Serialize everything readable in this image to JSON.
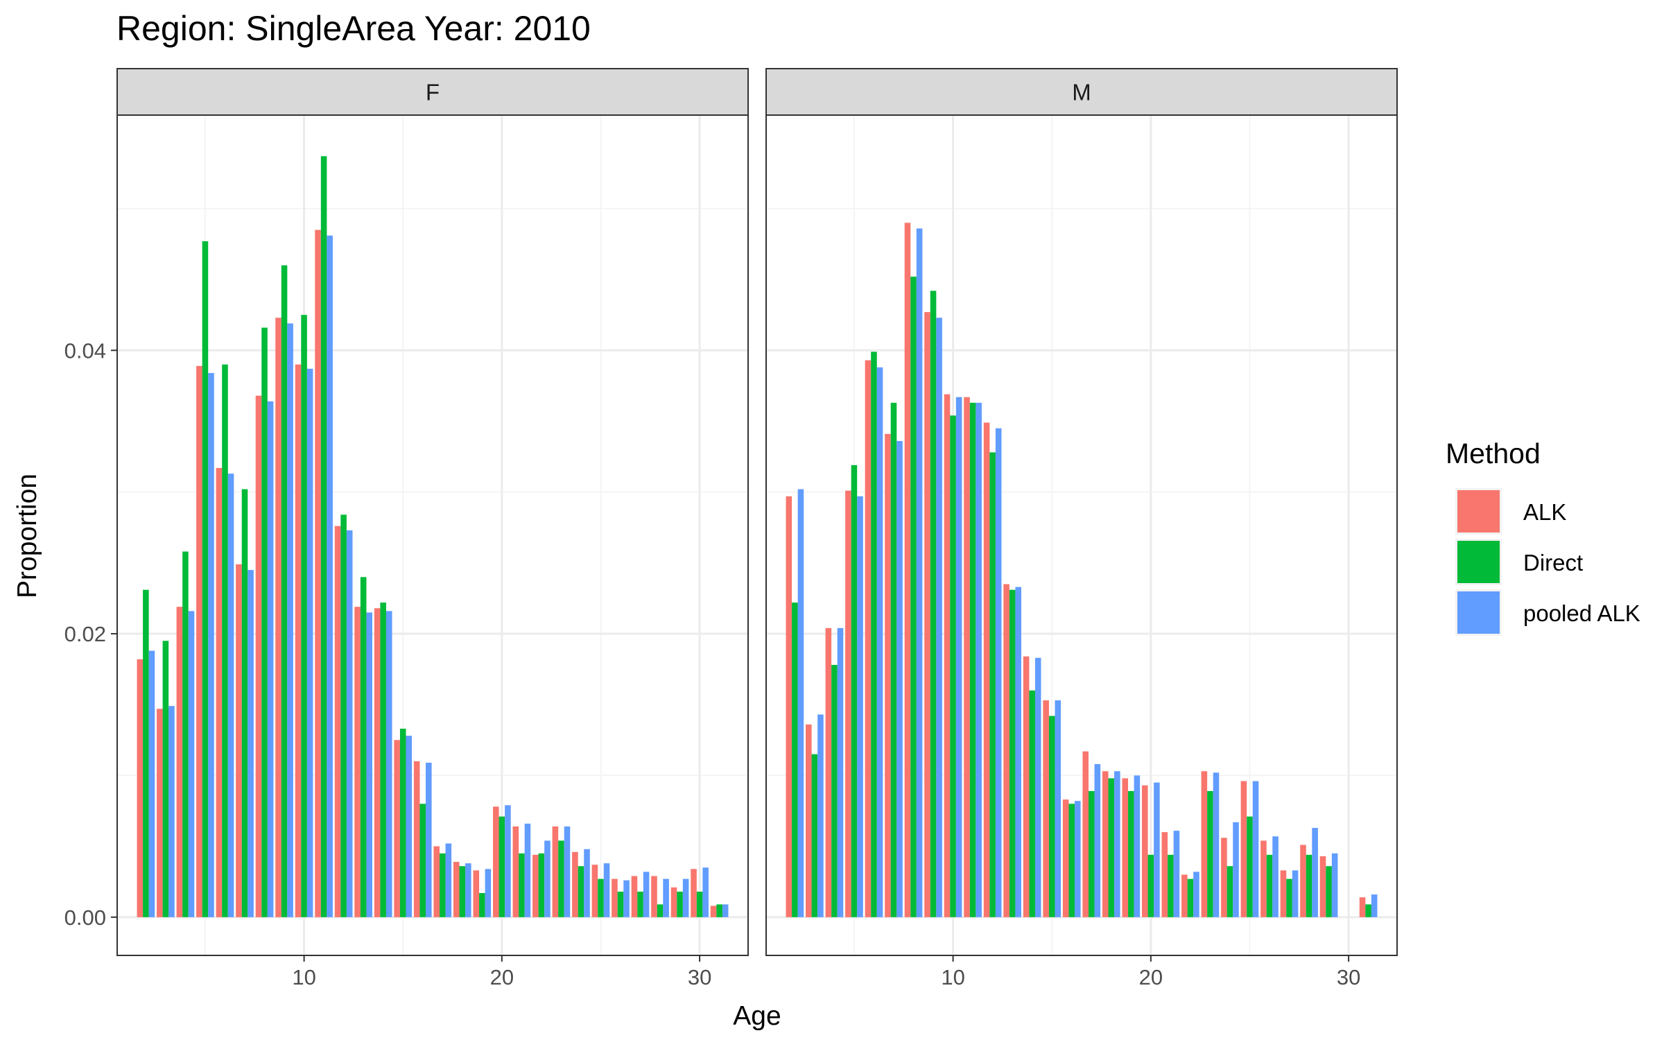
{
  "chart_data": {
    "type": "bar",
    "title": "Region: SingleArea Year: 2010",
    "xlabel": "Age",
    "ylabel": "Proportion",
    "xlim": [
      0.55,
      32.45
    ],
    "ylim": [
      -0.0027,
      0.0566
    ],
    "x_ticks": [
      10,
      20,
      30
    ],
    "y_ticks": [
      0.0,
      0.02,
      0.04
    ],
    "y_tick_labels": [
      "0.00",
      "0.02",
      "0.04"
    ],
    "grid": true,
    "legend": {
      "title": "Method",
      "position": "right",
      "entries": [
        "ALK",
        "Direct",
        "pooled ALK"
      ]
    },
    "colors": {
      "ALK": "#F8766D",
      "Direct": "#00BA38",
      "pooled ALK": "#619CFF",
      "strip_background": "#D9D9D9",
      "panel_border": "#333333",
      "grid_major": "#EBEBEB",
      "grid_minor": "#F4F4F4"
    },
    "panels": [
      {
        "strip": "F",
        "ages": [
          2,
          3,
          4,
          5,
          6,
          7,
          8,
          9,
          10,
          11,
          12,
          13,
          14,
          15,
          16,
          17,
          18,
          19,
          20,
          21,
          22,
          23,
          24,
          25,
          26,
          27,
          28,
          29,
          30,
          31
        ],
        "series": [
          {
            "name": "ALK",
            "values": [
              0.0182,
              0.0147,
              0.0219,
              0.0389,
              0.0317,
              0.0249,
              0.0368,
              0.0423,
              0.039,
              0.0485,
              0.0276,
              0.0219,
              0.0218,
              0.0125,
              0.011,
              0.005,
              0.0039,
              0.0033,
              0.0078,
              0.0064,
              0.0044,
              0.0064,
              0.0046,
              0.0037,
              0.0027,
              0.0029,
              0.0029,
              0.0021,
              0.0034,
              0.0008
            ]
          },
          {
            "name": "Direct",
            "values": [
              0.0231,
              0.0195,
              0.0258,
              0.0477,
              0.039,
              0.0302,
              0.0416,
              0.046,
              0.0425,
              0.0537,
              0.0284,
              0.024,
              0.0222,
              0.0133,
              0.008,
              0.0045,
              0.0036,
              0.0017,
              0.0071,
              0.0045,
              0.0045,
              0.0054,
              0.0036,
              0.0027,
              0.0018,
              0.0018,
              0.0009,
              0.0018,
              0.0018,
              0.0009
            ]
          },
          {
            "name": "pooled ALK",
            "values": [
              0.0188,
              0.0149,
              0.0216,
              0.0384,
              0.0313,
              0.0245,
              0.0364,
              0.0419,
              0.0387,
              0.0481,
              0.0273,
              0.0215,
              0.0216,
              0.0128,
              0.0109,
              0.0052,
              0.0038,
              0.0034,
              0.0079,
              0.0066,
              0.0054,
              0.0064,
              0.0048,
              0.0038,
              0.0026,
              0.0032,
              0.0027,
              0.0027,
              0.0035,
              0.0009
            ]
          }
        ]
      },
      {
        "strip": "M",
        "ages": [
          2,
          3,
          4,
          5,
          6,
          7,
          8,
          9,
          10,
          11,
          12,
          13,
          14,
          15,
          16,
          17,
          18,
          19,
          20,
          21,
          22,
          23,
          24,
          25,
          26,
          27,
          28,
          29,
          30,
          31
        ],
        "series": [
          {
            "name": "ALK",
            "values": [
              0.0297,
              0.0136,
              0.0204,
              0.0301,
              0.0393,
              0.0341,
              0.049,
              0.0427,
              0.0369,
              0.0367,
              0.0349,
              0.0235,
              0.0184,
              0.0153,
              0.0083,
              0.0117,
              0.0103,
              0.0098,
              0.0093,
              0.006,
              0.003,
              0.0103,
              0.0056,
              0.0096,
              0.0054,
              0.0033,
              0.0051,
              0.0043,
              0.0,
              0.0014
            ]
          },
          {
            "name": "Direct",
            "values": [
              0.0222,
              0.0115,
              0.0178,
              0.0319,
              0.0399,
              0.0363,
              0.0452,
              0.0442,
              0.0354,
              0.0363,
              0.0328,
              0.0231,
              0.016,
              0.0142,
              0.008,
              0.0089,
              0.0098,
              0.0089,
              0.0044,
              0.0044,
              0.0027,
              0.0089,
              0.0036,
              0.0071,
              0.0044,
              0.0027,
              0.0044,
              0.0036,
              0.0,
              0.0009
            ]
          },
          {
            "name": "pooled ALK",
            "values": [
              0.0302,
              0.0143,
              0.0204,
              0.0297,
              0.0388,
              0.0336,
              0.0486,
              0.0423,
              0.0367,
              0.0363,
              0.0345,
              0.0233,
              0.0183,
              0.0153,
              0.0082,
              0.0108,
              0.0103,
              0.01,
              0.0095,
              0.0061,
              0.0032,
              0.0102,
              0.0067,
              0.0096,
              0.0057,
              0.0033,
              0.0063,
              0.0045,
              0.0,
              0.0016
            ]
          }
        ]
      }
    ]
  }
}
